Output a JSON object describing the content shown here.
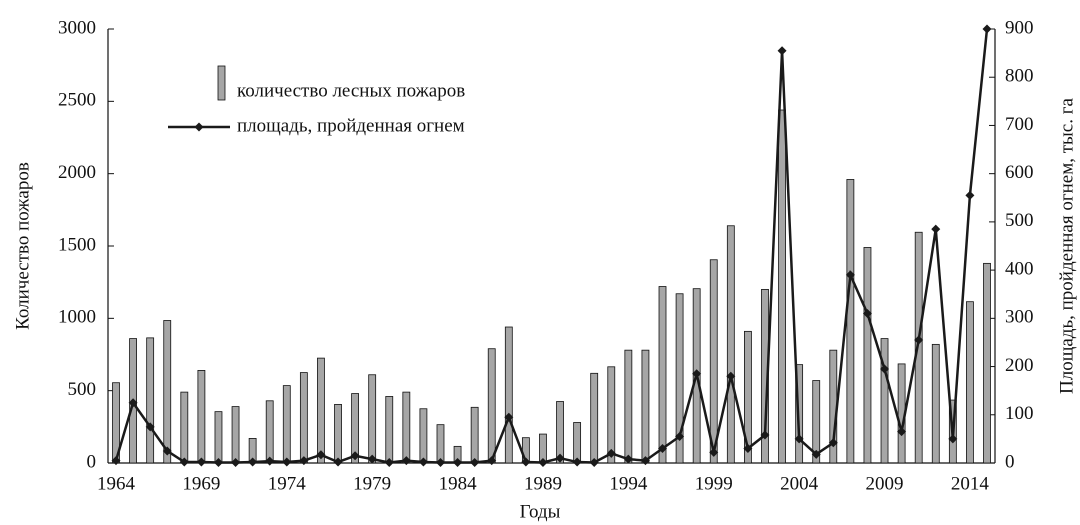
{
  "chart_data": {
    "type": "bar",
    "x_label": "Годы",
    "y_label": "Количество пожаров",
    "y2_label": "Площадь, пройденная огнем, тыс. га",
    "categories": [
      "1964",
      null,
      null,
      null,
      null,
      "1969",
      null,
      null,
      null,
      null,
      "1974",
      null,
      null,
      null,
      null,
      "1979",
      null,
      null,
      null,
      null,
      "1984",
      null,
      null,
      null,
      null,
      "1989",
      null,
      null,
      null,
      null,
      "1994",
      null,
      null,
      null,
      null,
      "1999",
      null,
      null,
      null,
      null,
      "2004",
      null,
      null,
      null,
      null,
      "2009",
      null,
      null,
      null,
      null,
      "2014",
      null
    ],
    "series": [
      {
        "name": "количество лесных пожаров",
        "type": "bar",
        "color": "#a6a6a6",
        "values": [
          555,
          860,
          865,
          985,
          490,
          640,
          355,
          390,
          170,
          430,
          535,
          625,
          725,
          405,
          480,
          610,
          460,
          490,
          375,
          265,
          115,
          385,
          790,
          940,
          175,
          200,
          425,
          280,
          620,
          665,
          780,
          780,
          1220,
          1170,
          1205,
          1405,
          1640,
          910,
          1200,
          2440,
          680,
          570,
          780,
          1960,
          1490,
          860,
          685,
          1595,
          820,
          435,
          1115,
          1380
        ]
      },
      {
        "name": "площадь, пройденная огнем",
        "type": "line",
        "axis": "y2",
        "color": "#1a1a1a",
        "values": [
          5,
          125,
          75,
          25,
          2,
          2,
          1,
          1,
          2,
          4,
          2,
          5,
          17,
          2,
          15,
          8,
          1,
          5,
          2,
          1,
          1,
          1,
          5,
          95,
          2,
          1,
          10,
          2,
          1,
          20,
          8,
          5,
          30,
          55,
          185,
          22,
          180,
          30,
          58,
          855,
          50,
          18,
          42,
          390,
          310,
          195,
          65,
          255,
          485,
          50,
          555,
          900
        ]
      }
    ],
    "ylim": [
      0,
      3000
    ],
    "yticks": [
      0,
      500,
      1000,
      1500,
      2000,
      2500,
      3000
    ],
    "y2lim": [
      0,
      900
    ],
    "y2ticks": [
      0,
      100,
      200,
      300,
      400,
      500,
      600,
      700,
      800,
      900
    ],
    "legend": "upper left"
  }
}
